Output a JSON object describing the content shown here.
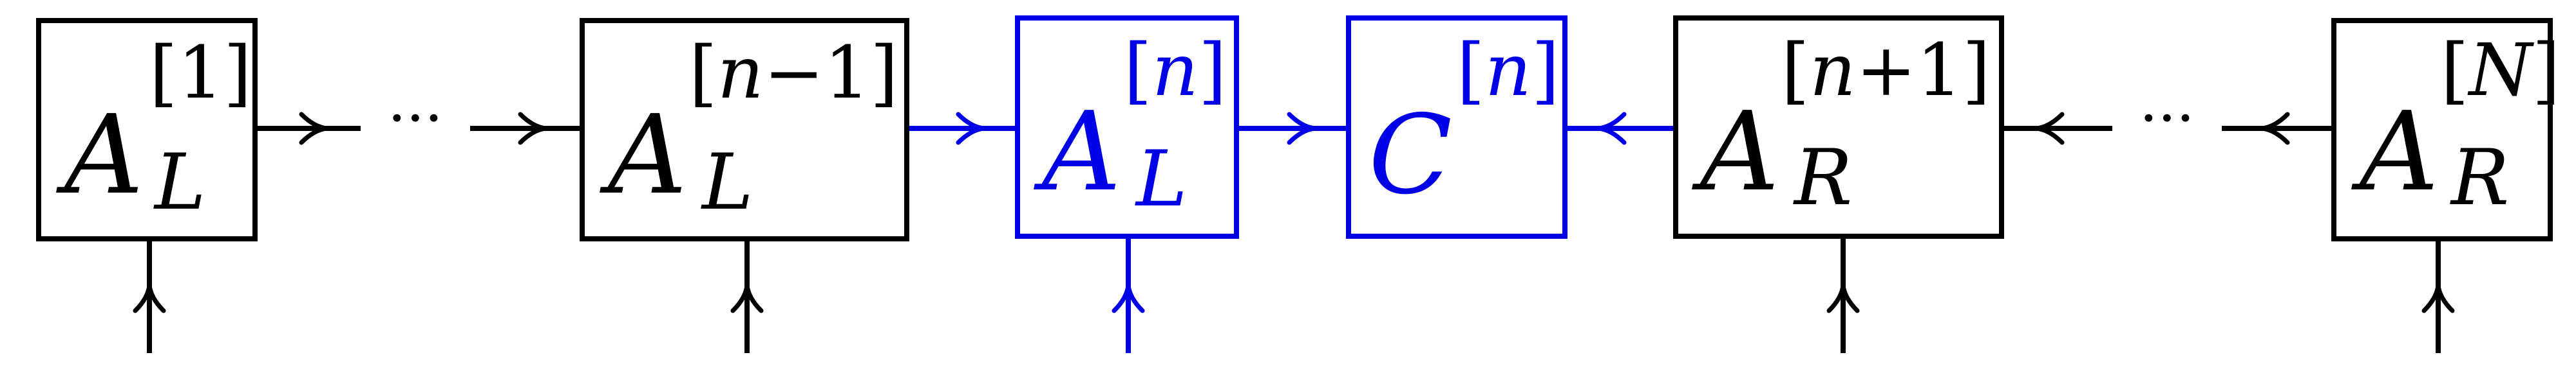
{
  "colors": {
    "black": "#000000",
    "highlight": "#0000e6"
  },
  "tensors": [
    {
      "base": "A",
      "sub": "L",
      "sup_pre": "[",
      "sup_var": "",
      "sup_num": "1",
      "sup_post": "]"
    },
    {
      "base": "A",
      "sub": "L",
      "sup_pre": "[",
      "sup_var": "n",
      "sup_num": "−1",
      "sup_post": "]"
    },
    {
      "base": "A",
      "sub": "L",
      "sup_pre": "[",
      "sup_var": "n",
      "sup_num": "",
      "sup_post": "]"
    },
    {
      "base": "C",
      "sub": "",
      "sup_pre": "[",
      "sup_var": "n",
      "sup_num": "",
      "sup_post": "]"
    },
    {
      "base": "A",
      "sub": "R",
      "sup_pre": "[",
      "sup_var": "n",
      "sup_num": "+1",
      "sup_post": "]"
    },
    {
      "base": "A",
      "sub": "R",
      "sup_pre": "[",
      "sup_var": "N",
      "sup_num": "",
      "sup_post": "]"
    }
  ],
  "ellipsis": [
    "···",
    "···"
  ]
}
